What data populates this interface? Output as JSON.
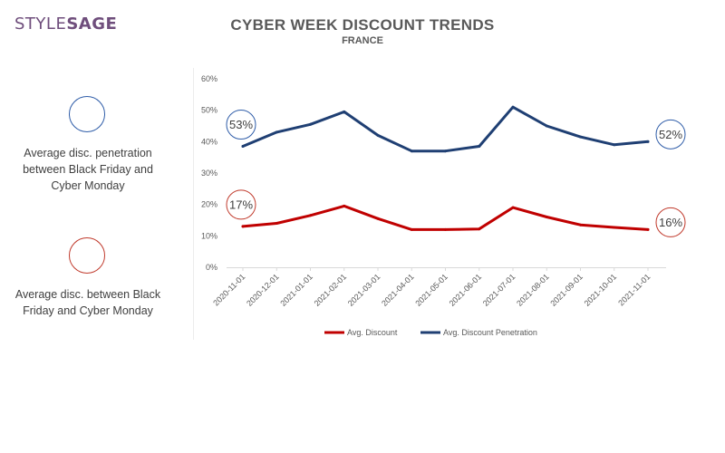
{
  "brand": {
    "part1": "STYLE",
    "part2": "SAGE"
  },
  "title": "CYBER WEEK DISCOUNT TRENDS",
  "subtitle": "FRANCE",
  "side_notes": [
    {
      "text": "Average disc. penetration between Black Friday and Cyber Monday",
      "color": "#2e5ca8"
    },
    {
      "text": "Average disc. between Black Friday and Cyber Monday",
      "color": "#c0392b"
    }
  ],
  "chart_data": {
    "type": "line",
    "x": [
      "2020-11-01",
      "2020-12-01",
      "2021-01-01",
      "2021-02-01",
      "2021-03-01",
      "2021-04-01",
      "2021-05-01",
      "2021-06-01",
      "2021-07-01",
      "2021-08-01",
      "2021-09-01",
      "2021-10-01",
      "2021-11-01"
    ],
    "ylim": [
      0,
      60
    ],
    "yticks": [
      "0%",
      "10%",
      "20%",
      "30%",
      "40%",
      "50%",
      "60%"
    ],
    "series": [
      {
        "name": "Avg. Discount",
        "color": "#c00000",
        "values": [
          13,
          14,
          16.5,
          19.5,
          15.5,
          12,
          12,
          12.2,
          19,
          16,
          13.5,
          12.7,
          12
        ]
      },
      {
        "name": "Avg. Discount Penetration",
        "color": "#1f3f73",
        "values": [
          38.5,
          43,
          45.5,
          49.5,
          42,
          37,
          37,
          38.5,
          51,
          45,
          41.5,
          39,
          40
        ]
      }
    ],
    "legend_position": "bottom",
    "grid": false,
    "callouts": [
      {
        "label": "53%",
        "series": "Avg. Discount Penetration",
        "at": "2020-11-01",
        "color": "#2e5ca8"
      },
      {
        "label": "52%",
        "series": "Avg. Discount Penetration",
        "at": "2021-11-01",
        "color": "#2e5ca8"
      },
      {
        "label": "17%",
        "series": "Avg. Discount",
        "at": "2020-11-01",
        "color": "#c0392b"
      },
      {
        "label": "16%",
        "series": "Avg. Discount",
        "at": "2021-11-01",
        "color": "#c0392b"
      }
    ]
  }
}
